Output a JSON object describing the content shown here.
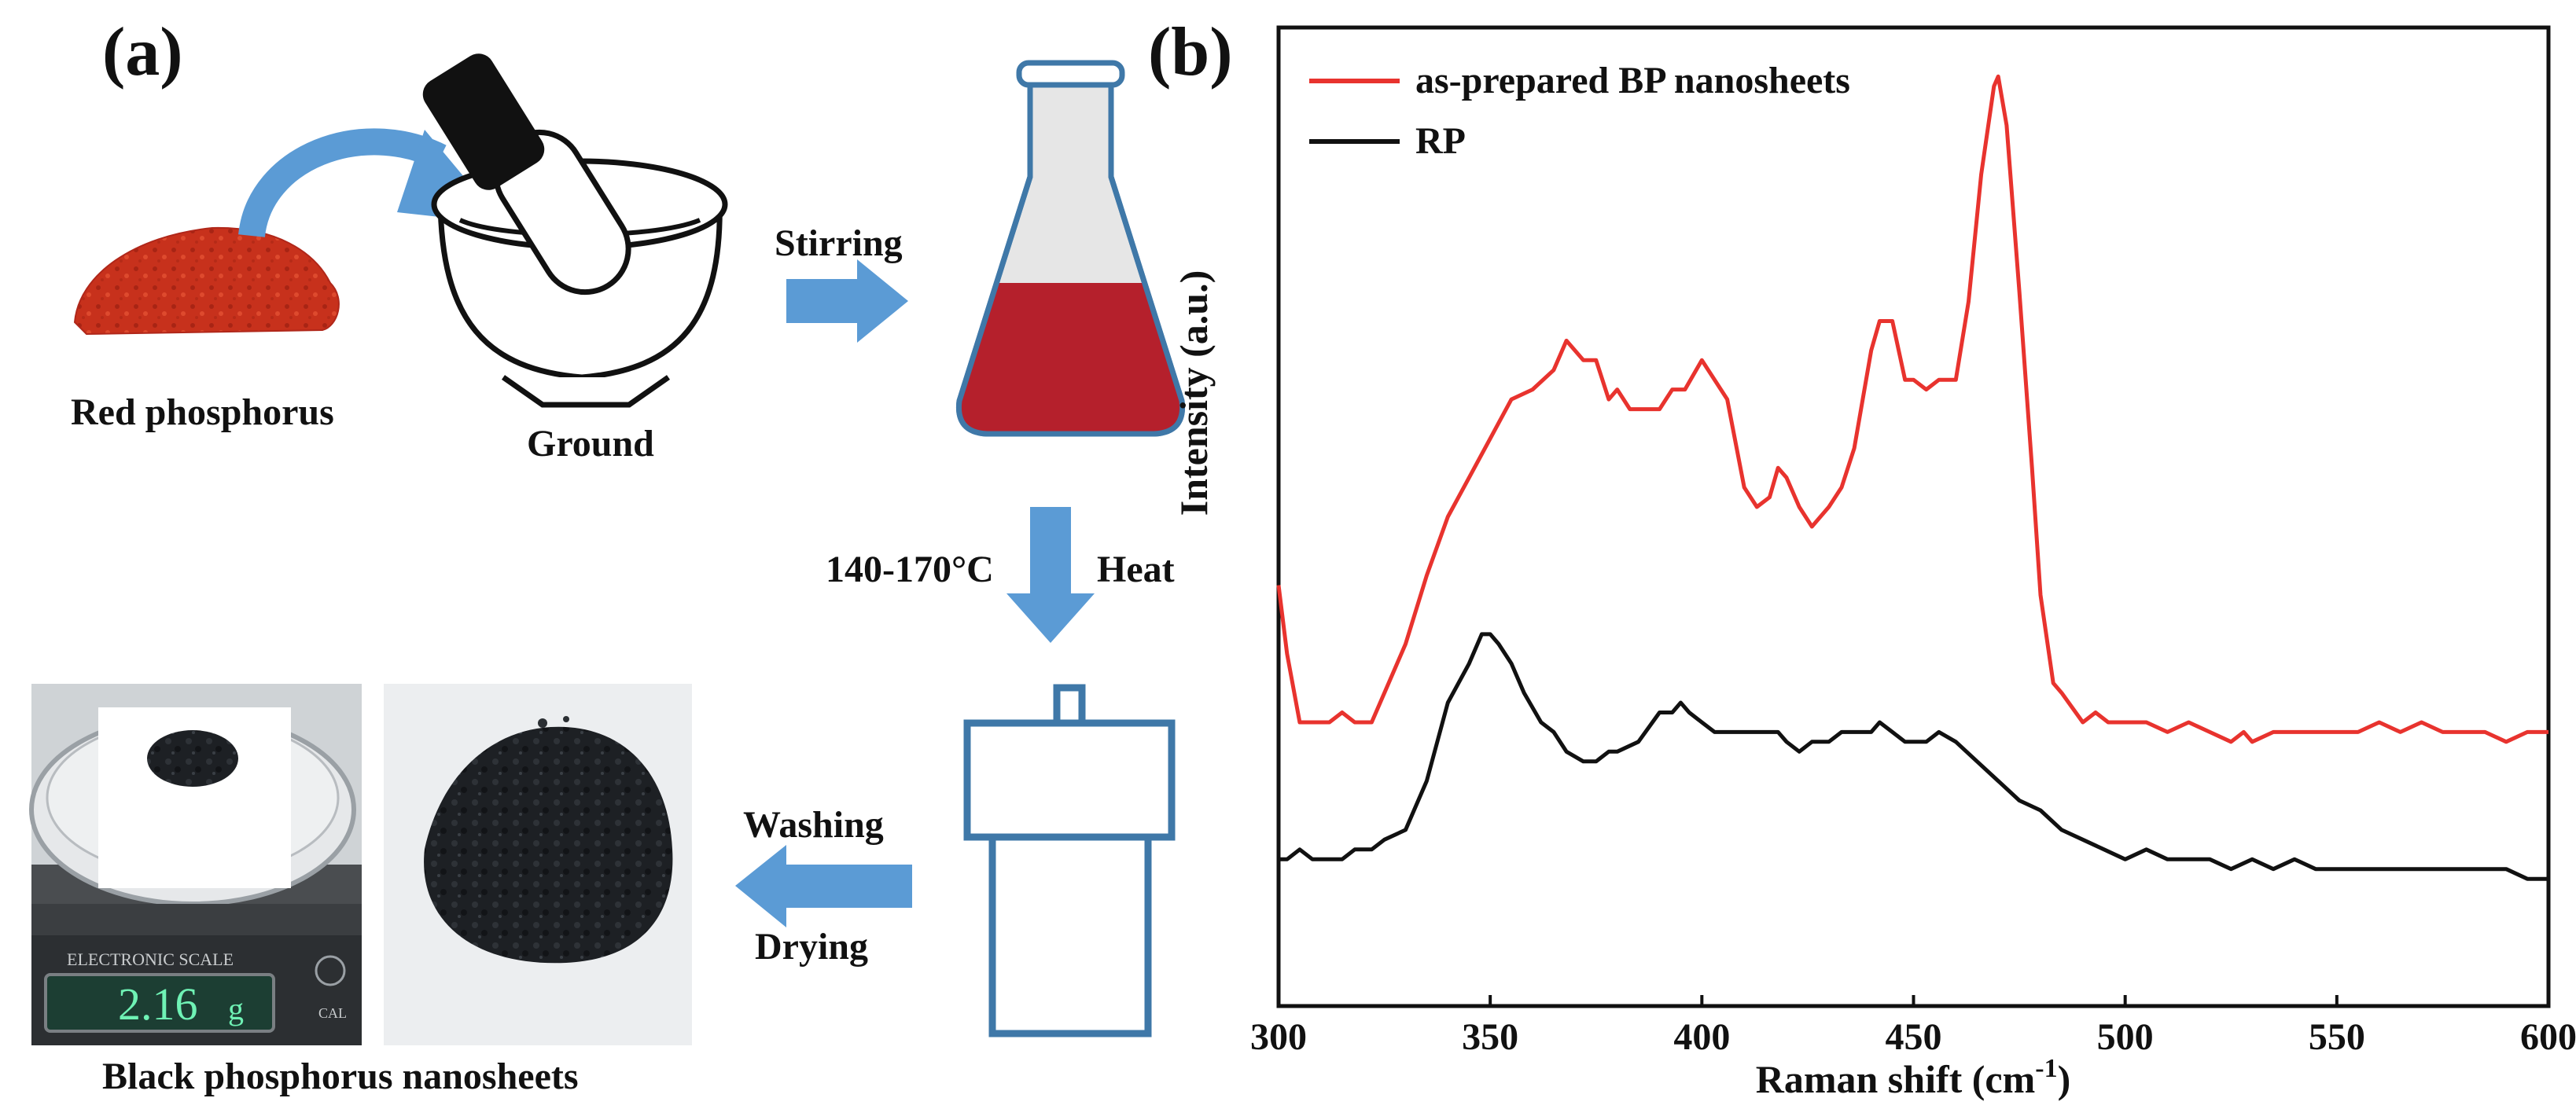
{
  "panel_a": {
    "label": "(a)",
    "red_phosphorus_label": "Red phosphorus",
    "ground_label": "Ground",
    "stirring_label": "Stirring",
    "temperature_label": "140-170°C",
    "heat_label": "Heat",
    "washing_label": "Washing",
    "drying_label": "Drying",
    "product_label": "Black phosphorus nanosheets",
    "scale_brand": "ELECTRONIC  SCALE",
    "scale_reading": "2.16",
    "scale_unit": "g",
    "scale_cal": "CAL",
    "colors": {
      "arrow": "#5b9bd5",
      "solution": "#b5202c",
      "powder": "#c7311c",
      "outline": "#3f78a8"
    }
  },
  "panel_b": {
    "label": "(b)"
  },
  "chart_data": {
    "type": "line",
    "title": "",
    "xlabel": "Raman shift (cm",
    "xlabel_sup": "-1",
    "xlabel_close": ")",
    "ylabel": "Intensity (a.u.)",
    "xlim": [
      300,
      600
    ],
    "ylim": [
      0,
      1
    ],
    "xticks": [
      300,
      350,
      400,
      450,
      500,
      550,
      600
    ],
    "legend_position": "top-left",
    "series": [
      {
        "name": "as-prepared BP nanosheets",
        "color": "#e8332e",
        "x": [
          300,
          302,
          305,
          308,
          312,
          315,
          318,
          322,
          325,
          330,
          335,
          340,
          345,
          350,
          355,
          360,
          365,
          368,
          372,
          375,
          378,
          380,
          383,
          386,
          390,
          393,
          396,
          400,
          403,
          406,
          410,
          413,
          416,
          418,
          420,
          423,
          426,
          430,
          433,
          436,
          440,
          442,
          445,
          448,
          450,
          453,
          456,
          460,
          463,
          466,
          469,
          470,
          472,
          475,
          478,
          480,
          483,
          485,
          490,
          493,
          496,
          500,
          505,
          510,
          515,
          520,
          525,
          528,
          530,
          535,
          540,
          545,
          550,
          555,
          560,
          565,
          570,
          575,
          580,
          585,
          590,
          595,
          600
        ],
        "values": [
          0.43,
          0.36,
          0.29,
          0.29,
          0.29,
          0.3,
          0.29,
          0.29,
          0.32,
          0.37,
          0.44,
          0.5,
          0.54,
          0.58,
          0.62,
          0.63,
          0.65,
          0.68,
          0.66,
          0.66,
          0.62,
          0.63,
          0.61,
          0.61,
          0.61,
          0.63,
          0.63,
          0.66,
          0.64,
          0.62,
          0.53,
          0.51,
          0.52,
          0.55,
          0.54,
          0.51,
          0.49,
          0.51,
          0.53,
          0.57,
          0.67,
          0.7,
          0.7,
          0.64,
          0.64,
          0.63,
          0.64,
          0.64,
          0.72,
          0.85,
          0.94,
          0.95,
          0.9,
          0.73,
          0.55,
          0.42,
          0.33,
          0.32,
          0.29,
          0.3,
          0.29,
          0.29,
          0.29,
          0.28,
          0.29,
          0.28,
          0.27,
          0.28,
          0.27,
          0.28,
          0.28,
          0.28,
          0.28,
          0.28,
          0.29,
          0.28,
          0.29,
          0.28,
          0.28,
          0.28,
          0.27,
          0.28,
          0.28
        ]
      },
      {
        "name": "RP",
        "color": "#111111",
        "x": [
          300,
          302,
          305,
          308,
          312,
          315,
          318,
          322,
          325,
          330,
          335,
          340,
          345,
          348,
          350,
          352,
          355,
          358,
          362,
          365,
          368,
          372,
          375,
          378,
          380,
          385,
          390,
          393,
          395,
          397,
          400,
          403,
          406,
          410,
          413,
          416,
          418,
          420,
          423,
          426,
          430,
          433,
          436,
          440,
          442,
          445,
          448,
          450,
          453,
          456,
          460,
          465,
          470,
          475,
          480,
          485,
          490,
          495,
          500,
          505,
          510,
          515,
          520,
          525,
          530,
          535,
          540,
          545,
          550,
          555,
          560,
          565,
          570,
          575,
          580,
          585,
          590,
          595,
          600
        ],
        "values": [
          0.15,
          0.15,
          0.16,
          0.15,
          0.15,
          0.15,
          0.16,
          0.16,
          0.17,
          0.18,
          0.23,
          0.31,
          0.35,
          0.38,
          0.38,
          0.37,
          0.35,
          0.32,
          0.29,
          0.28,
          0.26,
          0.25,
          0.25,
          0.26,
          0.26,
          0.27,
          0.3,
          0.3,
          0.31,
          0.3,
          0.29,
          0.28,
          0.28,
          0.28,
          0.28,
          0.28,
          0.28,
          0.27,
          0.26,
          0.27,
          0.27,
          0.28,
          0.28,
          0.28,
          0.29,
          0.28,
          0.27,
          0.27,
          0.27,
          0.28,
          0.27,
          0.25,
          0.23,
          0.21,
          0.2,
          0.18,
          0.17,
          0.16,
          0.15,
          0.16,
          0.15,
          0.15,
          0.15,
          0.14,
          0.15,
          0.14,
          0.15,
          0.14,
          0.14,
          0.14,
          0.14,
          0.14,
          0.14,
          0.14,
          0.14,
          0.14,
          0.14,
          0.13,
          0.13
        ]
      }
    ]
  }
}
